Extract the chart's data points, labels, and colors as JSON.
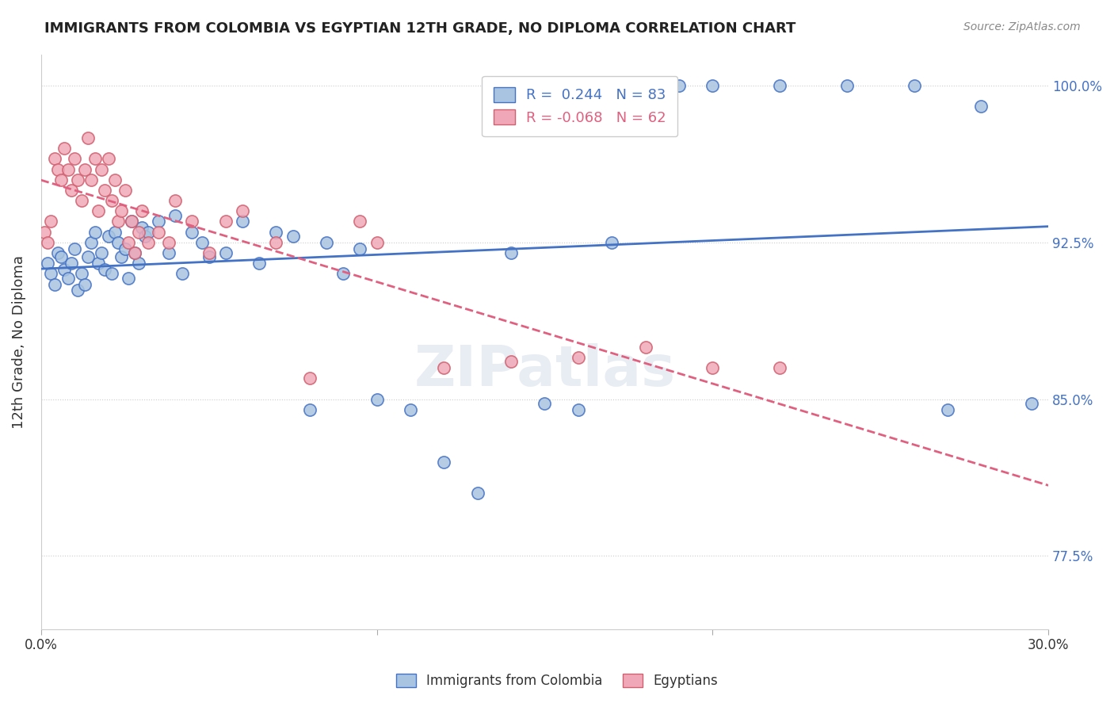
{
  "title": "IMMIGRANTS FROM COLOMBIA VS EGYPTIAN 12TH GRADE, NO DIPLOMA CORRELATION CHART",
  "source": "Source: ZipAtlas.com",
  "ylabel": "12th Grade, No Diploma",
  "xmin": 0.0,
  "xmax": 30.0,
  "ymin": 74.0,
  "ymax": 101.5,
  "r_colombia": 0.244,
  "n_colombia": 83,
  "r_egyptian": -0.068,
  "n_egyptian": 62,
  "color_colombia": "#a8c4e0",
  "color_egyptian": "#f0a8b8",
  "line_color_colombia": "#4472c4",
  "line_color_egyptian": "#e06080",
  "edge_color_egyptian": "#d06070",
  "watermark": "ZIPatlas",
  "colombia_x": [
    0.2,
    0.3,
    0.4,
    0.5,
    0.6,
    0.7,
    0.8,
    0.9,
    1.0,
    1.1,
    1.2,
    1.3,
    1.4,
    1.5,
    1.6,
    1.7,
    1.8,
    1.9,
    2.0,
    2.1,
    2.2,
    2.3,
    2.4,
    2.5,
    2.6,
    2.7,
    2.8,
    2.9,
    3.0,
    3.1,
    3.2,
    3.5,
    3.8,
    4.0,
    4.2,
    4.5,
    4.8,
    5.0,
    5.5,
    6.0,
    6.5,
    7.0,
    7.5,
    8.0,
    8.5,
    9.0,
    9.5,
    10.0,
    11.0,
    12.0,
    13.0,
    14.0,
    15.0,
    16.0,
    17.0,
    18.0,
    19.0,
    20.0,
    22.0,
    24.0,
    26.0,
    27.0,
    28.0,
    29.5
  ],
  "colombia_y": [
    91.5,
    91.0,
    90.5,
    92.0,
    91.8,
    91.2,
    90.8,
    91.5,
    92.2,
    90.2,
    91.0,
    90.5,
    91.8,
    92.5,
    93.0,
    91.5,
    92.0,
    91.2,
    92.8,
    91.0,
    93.0,
    92.5,
    91.8,
    92.2,
    90.8,
    93.5,
    92.0,
    91.5,
    93.2,
    92.8,
    93.0,
    93.5,
    92.0,
    93.8,
    91.0,
    93.0,
    92.5,
    91.8,
    92.0,
    93.5,
    91.5,
    93.0,
    92.8,
    84.5,
    92.5,
    91.0,
    92.2,
    85.0,
    84.5,
    82.0,
    80.5,
    92.0,
    84.8,
    84.5,
    92.5,
    100.0,
    100.0,
    100.0,
    100.0,
    100.0,
    100.0,
    84.5,
    99.0,
    84.8
  ],
  "egyptian_x": [
    0.1,
    0.2,
    0.3,
    0.4,
    0.5,
    0.6,
    0.7,
    0.8,
    0.9,
    1.0,
    1.1,
    1.2,
    1.3,
    1.4,
    1.5,
    1.6,
    1.7,
    1.8,
    1.9,
    2.0,
    2.1,
    2.2,
    2.3,
    2.4,
    2.5,
    2.6,
    2.7,
    2.8,
    2.9,
    3.0,
    3.2,
    3.5,
    3.8,
    4.0,
    4.5,
    5.0,
    5.5,
    6.0,
    7.0,
    8.0,
    9.5,
    10.0,
    12.0,
    14.0,
    16.0,
    18.0,
    20.0,
    22.0
  ],
  "egyptian_y": [
    93.0,
    92.5,
    93.5,
    96.5,
    96.0,
    95.5,
    97.0,
    96.0,
    95.0,
    96.5,
    95.5,
    94.5,
    96.0,
    97.5,
    95.5,
    96.5,
    94.0,
    96.0,
    95.0,
    96.5,
    94.5,
    95.5,
    93.5,
    94.0,
    95.0,
    92.5,
    93.5,
    92.0,
    93.0,
    94.0,
    92.5,
    93.0,
    92.5,
    94.5,
    93.5,
    92.0,
    93.5,
    94.0,
    92.5,
    86.0,
    93.5,
    92.5,
    86.5,
    86.8,
    87.0,
    87.5,
    86.5,
    86.5
  ]
}
